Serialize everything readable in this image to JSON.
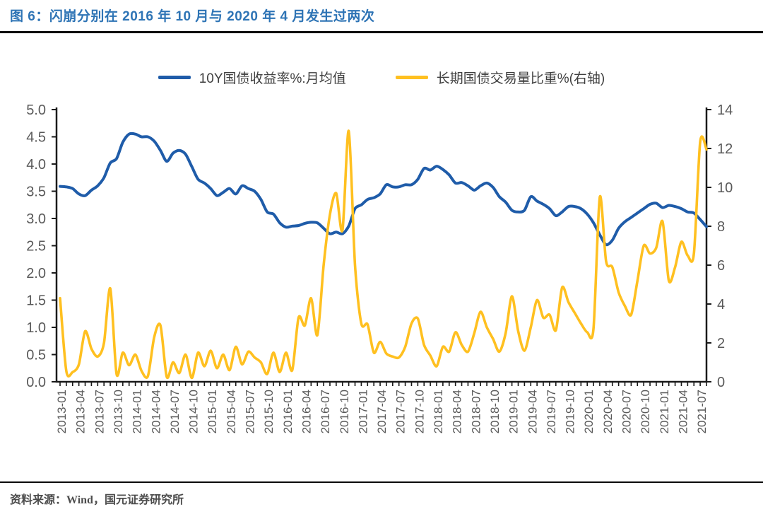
{
  "figure": {
    "title": "图 6：闪崩分别在 2016 年 10 月与 2020 年 4 月发生过两次",
    "source": "资料来源：Wind，国元证券研究所"
  },
  "colors": {
    "title_blue": "#2E74B5",
    "rule_black": "#0a0a0a",
    "axis_line": "#1a1a1a",
    "axis_label_gray": "#595959",
    "legend_text": "#3f3f3f",
    "series_blue": "#1F5CA9",
    "series_yellow": "#FFC020"
  },
  "chart_data": {
    "type": "line",
    "x_start": "2013-01",
    "x_freq": "monthly",
    "points_per_tick": 3,
    "x_tick_labels": [
      "2013-01",
      "2013-04",
      "2013-07",
      "2013-10",
      "2014-01",
      "2014-04",
      "2014-07",
      "2014-10",
      "2015-01",
      "2015-04",
      "2015-07",
      "2015-10",
      "2016-01",
      "2016-04",
      "2016-07",
      "2016-10",
      "2017-01",
      "2017-04",
      "2017-07",
      "2017-10",
      "2018-01",
      "2018-04",
      "2018-07",
      "2018-10",
      "2019-01",
      "2019-04",
      "2019-07",
      "2019-10",
      "2020-01",
      "2020-04",
      "2020-07",
      "2020-10",
      "2021-01",
      "2021-04",
      "2021-07"
    ],
    "left_axis": {
      "min": 0,
      "max": 5,
      "step": 0.5,
      "tick_labels": [
        "5.0",
        "4.5",
        "4.0",
        "3.5",
        "3.0",
        "2.5",
        "2.0",
        "1.5",
        "1.0",
        "0.5",
        "0.0"
      ]
    },
    "right_axis": {
      "min": 0,
      "max": 14,
      "step": 2,
      "tick_labels": [
        "14",
        "12",
        "10",
        "8",
        "6",
        "4",
        "2",
        "0"
      ]
    },
    "grid": false,
    "legend_position": "top-center",
    "series": [
      {
        "name": "10Y国债收益率%:月均值",
        "axis": "left",
        "color": "#1F5CA9",
        "values": [
          3.59,
          3.58,
          3.55,
          3.45,
          3.42,
          3.52,
          3.6,
          3.75,
          4.02,
          4.1,
          4.4,
          4.55,
          4.55,
          4.5,
          4.5,
          4.42,
          4.25,
          4.05,
          4.2,
          4.25,
          4.18,
          3.95,
          3.72,
          3.65,
          3.55,
          3.42,
          3.48,
          3.55,
          3.45,
          3.6,
          3.55,
          3.5,
          3.35,
          3.12,
          3.08,
          2.92,
          2.84,
          2.86,
          2.87,
          2.91,
          2.93,
          2.92,
          2.82,
          2.72,
          2.75,
          2.72,
          2.86,
          3.18,
          3.25,
          3.35,
          3.38,
          3.45,
          3.62,
          3.58,
          3.58,
          3.62,
          3.62,
          3.72,
          3.92,
          3.89,
          3.96,
          3.9,
          3.8,
          3.65,
          3.66,
          3.6,
          3.52,
          3.6,
          3.65,
          3.57,
          3.4,
          3.3,
          3.15,
          3.12,
          3.15,
          3.4,
          3.32,
          3.26,
          3.18,
          3.05,
          3.12,
          3.22,
          3.22,
          3.18,
          3.08,
          2.92,
          2.7,
          2.52,
          2.6,
          2.82,
          2.94,
          3.02,
          3.1,
          3.18,
          3.26,
          3.28,
          3.2,
          3.24,
          3.22,
          3.18,
          3.12,
          3.1,
          2.98,
          2.85
        ]
      },
      {
        "name": "长期国债交易量比重%(右轴)",
        "axis": "right",
        "color": "#FFC020",
        "values": [
          4.3,
          0.55,
          0.5,
          0.9,
          2.6,
          1.7,
          1.3,
          2.0,
          4.8,
          0.4,
          1.5,
          0.85,
          1.4,
          0.55,
          0.3,
          2.3,
          2.9,
          0.25,
          1.0,
          0.45,
          1.4,
          0.2,
          1.5,
          0.8,
          1.6,
          0.7,
          1.4,
          0.6,
          1.8,
          0.9,
          1.55,
          1.25,
          1.0,
          0.4,
          1.5,
          0.5,
          1.5,
          0.6,
          3.3,
          2.9,
          4.3,
          2.4,
          6.0,
          8.6,
          9.7,
          7.8,
          12.9,
          6.0,
          3.0,
          2.95,
          1.5,
          2.05,
          1.45,
          1.3,
          1.25,
          1.8,
          3.0,
          3.25,
          1.9,
          1.35,
          0.8,
          1.8,
          1.55,
          2.55,
          1.9,
          1.55,
          2.5,
          3.6,
          2.8,
          2.2,
          1.55,
          2.5,
          4.4,
          2.6,
          1.6,
          2.8,
          4.2,
          3.3,
          3.45,
          2.65,
          4.85,
          4.1,
          3.55,
          3.0,
          2.55,
          2.75,
          9.5,
          6.2,
          5.9,
          4.6,
          3.9,
          3.45,
          5.2,
          7.0,
          6.6,
          6.9,
          8.25,
          5.2,
          5.9,
          7.2,
          6.5,
          6.6,
          12.35,
          11.95
        ]
      }
    ]
  }
}
